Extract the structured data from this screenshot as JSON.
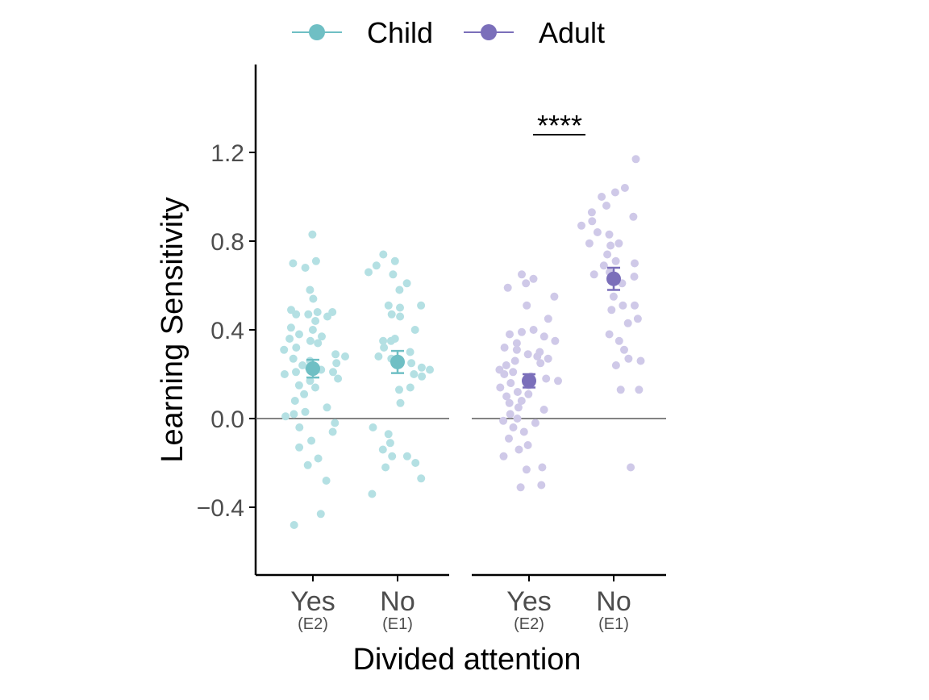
{
  "chart_data": {
    "type": "scatter",
    "subtype": "strip plot with mean and error bars, two facets",
    "ylabel": "Learning Sensitivity",
    "xlabel": "Divided attention",
    "ylim": [
      -0.7,
      1.6
    ],
    "yticks": [
      -0.4,
      0.0,
      0.4,
      0.8,
      1.2
    ],
    "ytick_labels": [
      "−0.4",
      "0.0",
      "0.4",
      "0.8",
      "1.2"
    ],
    "reference_line": 0.0,
    "legend": {
      "position": "top",
      "entries": [
        {
          "name": "Child",
          "color": "#6fbfc4"
        },
        {
          "name": "Adult",
          "color": "#7b6fba"
        }
      ]
    },
    "colors": {
      "child": "#6fbfc4",
      "child_light": "#b4e0e3",
      "adult": "#7b6fba",
      "adult_light": "#cfc9e8",
      "axis": "#000000",
      "tick_text": "#4d4d4d"
    },
    "panels": [
      {
        "group": "Child",
        "categories": [
          {
            "label": "Yes",
            "sublabel": "(E2)",
            "mean": 0.225,
            "se_low": 0.185,
            "se_high": 0.265,
            "points": [
              0.83,
              0.71,
              0.7,
              0.68,
              0.58,
              0.54,
              0.49,
              0.48,
              0.48,
              0.47,
              0.47,
              0.46,
              0.44,
              0.41,
              0.4,
              0.38,
              0.37,
              0.36,
              0.35,
              0.34,
              0.32,
              0.31,
              0.29,
              0.28,
              0.27,
              0.26,
              0.25,
              0.24,
              0.23,
              0.22,
              0.21,
              0.21,
              0.2,
              0.18,
              0.17,
              0.15,
              0.14,
              0.11,
              0.08,
              0.05,
              0.03,
              0.02,
              0.01,
              -0.02,
              -0.04,
              -0.06,
              -0.1,
              -0.13,
              -0.18,
              -0.21,
              -0.28,
              -0.43,
              -0.48
            ]
          },
          {
            "label": "No",
            "sublabel": "(E1)",
            "mean": 0.255,
            "se_low": 0.205,
            "se_high": 0.305,
            "points": [
              0.74,
              0.71,
              0.69,
              0.66,
              0.65,
              0.61,
              0.58,
              0.51,
              0.51,
              0.5,
              0.47,
              0.46,
              0.4,
              0.36,
              0.35,
              0.35,
              0.32,
              0.3,
              0.28,
              0.27,
              0.25,
              0.23,
              0.22,
              0.2,
              0.19,
              0.14,
              0.13,
              0.07,
              -0.04,
              -0.07,
              -0.11,
              -0.14,
              -0.17,
              -0.17,
              -0.2,
              -0.22,
              -0.27,
              -0.34
            ]
          }
        ]
      },
      {
        "group": "Adult",
        "significance": "****",
        "categories": [
          {
            "label": "Yes",
            "sublabel": "(E2)",
            "mean": 0.17,
            "se_low": 0.14,
            "se_high": 0.2,
            "points": [
              0.65,
              0.63,
              0.61,
              0.59,
              0.55,
              0.51,
              0.45,
              0.4,
              0.39,
              0.38,
              0.37,
              0.35,
              0.34,
              0.32,
              0.31,
              0.3,
              0.29,
              0.28,
              0.27,
              0.26,
              0.25,
              0.24,
              0.22,
              0.21,
              0.2,
              0.19,
              0.18,
              0.17,
              0.16,
              0.15,
              0.14,
              0.12,
              0.11,
              0.1,
              0.08,
              0.07,
              0.05,
              0.04,
              0.02,
              0.0,
              -0.01,
              -0.02,
              -0.04,
              -0.06,
              -0.09,
              -0.12,
              -0.14,
              -0.17,
              -0.22,
              -0.23,
              -0.3,
              -0.31
            ]
          },
          {
            "label": "No",
            "sublabel": "(E1)",
            "mean": 0.63,
            "se_low": 0.58,
            "se_high": 0.68,
            "points": [
              1.17,
              1.04,
              1.02,
              1.0,
              0.96,
              0.93,
              0.91,
              0.89,
              0.87,
              0.84,
              0.83,
              0.79,
              0.79,
              0.78,
              0.74,
              0.71,
              0.7,
              0.69,
              0.66,
              0.65,
              0.64,
              0.61,
              0.55,
              0.51,
              0.51,
              0.49,
              0.45,
              0.43,
              0.38,
              0.35,
              0.31,
              0.27,
              0.26,
              0.24,
              0.13,
              0.13,
              -0.22
            ]
          }
        ]
      }
    ]
  }
}
